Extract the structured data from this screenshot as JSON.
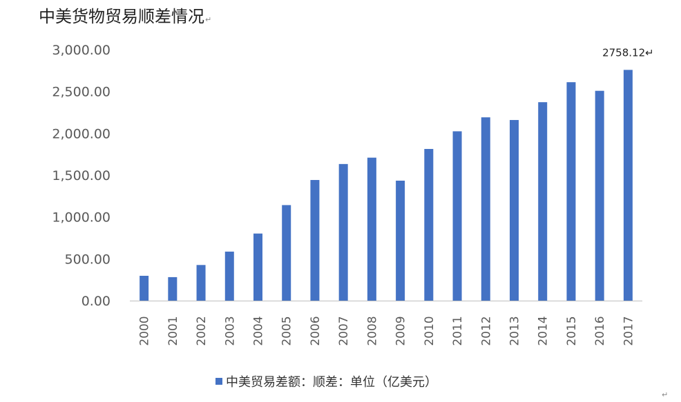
{
  "chart_data": {
    "type": "bar",
    "title": "中美货物贸易顺差情况",
    "categories": [
      "2000",
      "2001",
      "2002",
      "2003",
      "2004",
      "2005",
      "2006",
      "2007",
      "2008",
      "2009",
      "2010",
      "2011",
      "2012",
      "2013",
      "2014",
      "2015",
      "2016",
      "2017"
    ],
    "series": [
      {
        "name": "中美贸易差额：顺差：单位（亿美元）",
        "values": [
          297,
          281,
          426,
          586,
          802,
          1142,
          1442,
          1633,
          1709,
          1434,
          1813,
          2024,
          2191,
          2159,
          2372,
          2611,
          2508,
          2758.12
        ]
      }
    ],
    "yticks": [
      "0.00",
      "500.00",
      "1,000.00",
      "1,500.00",
      "2,000.00",
      "2,500.00",
      "3,000.00"
    ],
    "ylim": [
      0,
      3000
    ],
    "data_labels": [
      {
        "category": "2017",
        "text": "2758.12"
      }
    ],
    "grid": false,
    "legend_position": "bottom",
    "bar_color": "#4472C4"
  },
  "marks": {
    "return_symbol": "↵"
  }
}
